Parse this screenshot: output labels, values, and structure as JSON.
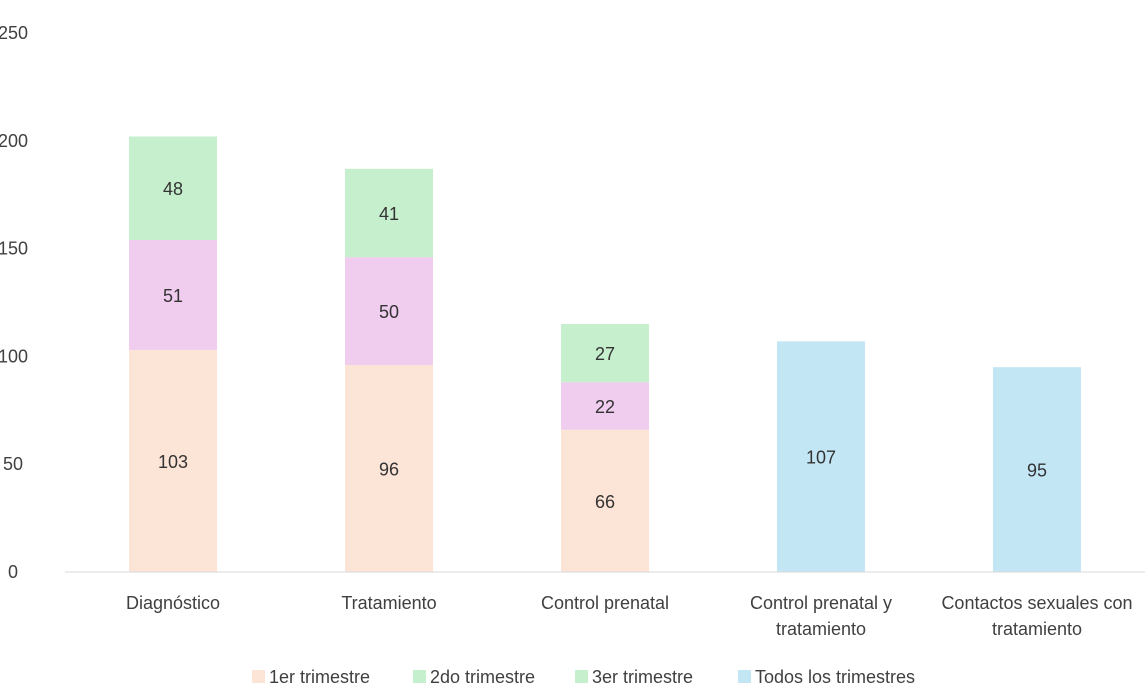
{
  "chart_data": {
    "type": "bar",
    "stacked": true,
    "title": "",
    "xlabel": "",
    "ylabel": "",
    "ylim": [
      0,
      250
    ],
    "yticks": [
      0,
      50,
      100,
      150,
      200,
      250
    ],
    "grid": false,
    "legend_position": "bottom",
    "categories": [
      [
        "Diagnóstico"
      ],
      [
        "Tratamiento"
      ],
      [
        "Control prenatal"
      ],
      [
        "Control prenatal y",
        "tratamiento"
      ],
      [
        "Contactos sexuales con",
        "tratamiento"
      ]
    ],
    "series": [
      {
        "name": "1er trimestre",
        "color": "#FCE4D6",
        "values": [
          103,
          96,
          66,
          null,
          null
        ]
      },
      {
        "name": "2do trimestre",
        "color": "#F0CCEE",
        "values": [
          51,
          50,
          22,
          null,
          null
        ]
      },
      {
        "name": "3er trimestre",
        "color": "#C6EFCE",
        "values": [
          48,
          41,
          27,
          null,
          null
        ]
      },
      {
        "name": "Todos los trimestres",
        "color": "#C3E6F5",
        "values": [
          null,
          null,
          null,
          107,
          95
        ]
      }
    ],
    "legend_colors": [
      "#FCE4D6",
      "#C6EFCE",
      "#C6EFCE",
      "#C3E6F5"
    ]
  }
}
